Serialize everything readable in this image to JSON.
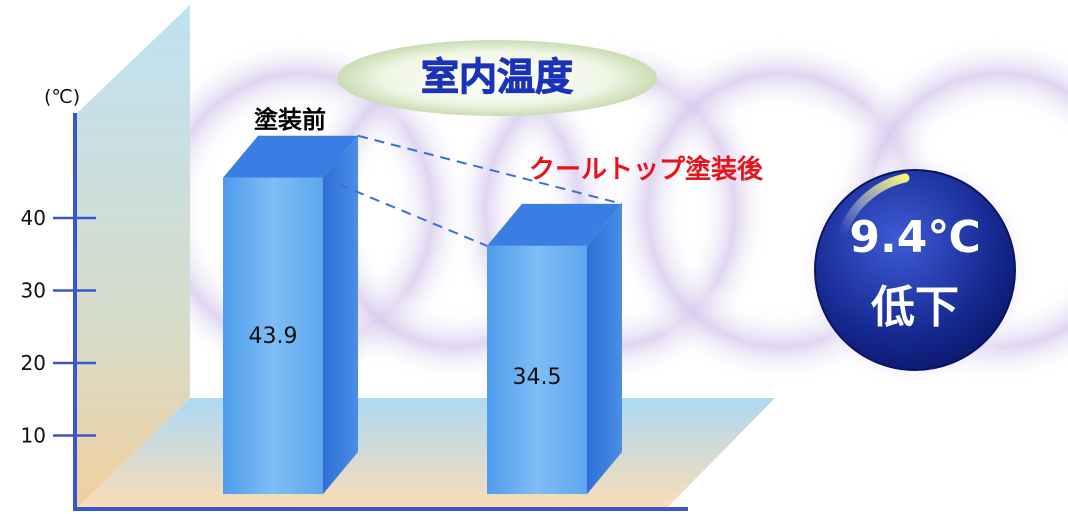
{
  "chart_data": {
    "type": "bar",
    "title": "室内温度",
    "unit_label": "(℃)",
    "categories": [
      "塗装前",
      "クールトップ塗装後"
    ],
    "values": [
      43.9,
      34.5
    ],
    "value_labels": [
      "43.9",
      "34.5"
    ],
    "yticks": [
      10,
      20,
      30,
      40
    ],
    "ytick_labels": [
      "10",
      "20",
      "30",
      "40"
    ],
    "ylim": [
      0,
      50
    ],
    "grid": false,
    "category_colors": [
      "#000000",
      "#e8121b"
    ],
    "bar_color": "#5aa4ee",
    "badge": {
      "value": "9.4℃",
      "text": "低下"
    }
  }
}
